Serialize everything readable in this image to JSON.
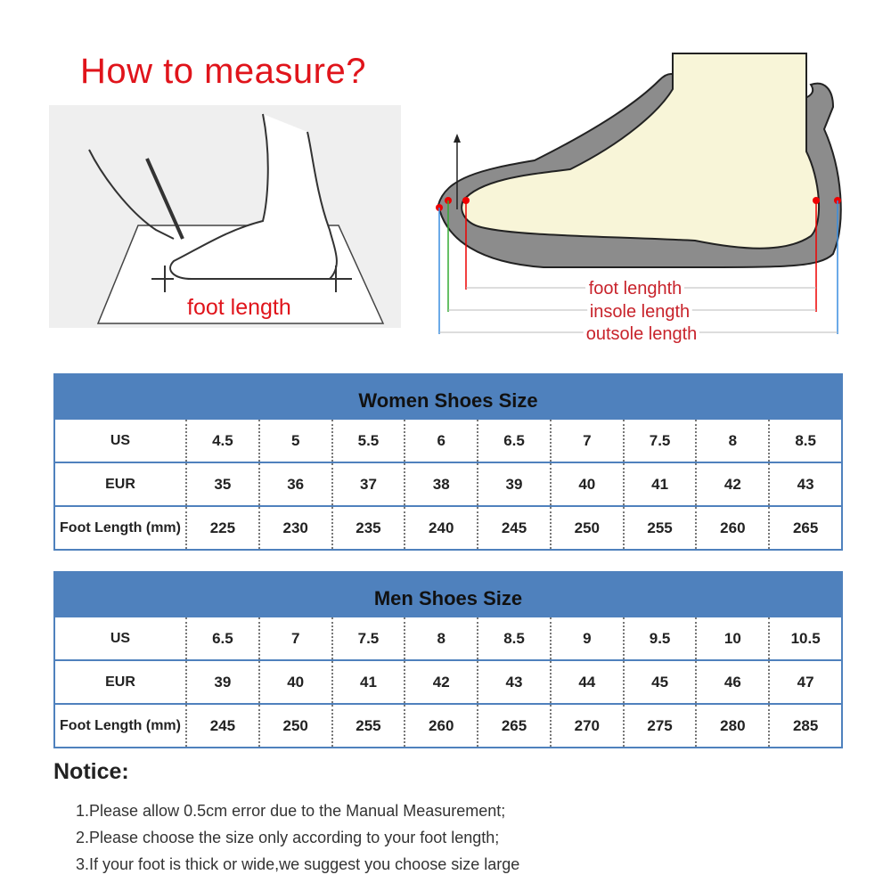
{
  "title": "How to measure?",
  "left_illustration": {
    "label": "foot length"
  },
  "right_illustration": {
    "labels": [
      "foot lenghth",
      "insole length",
      "outsole length"
    ]
  },
  "women": {
    "title": "Women Shoes Size",
    "rows": [
      {
        "label": "US",
        "values": [
          "4.5",
          "5",
          "5.5",
          "6",
          "6.5",
          "7",
          "7.5",
          "8",
          "8.5"
        ]
      },
      {
        "label": "EUR",
        "values": [
          "35",
          "36",
          "37",
          "38",
          "39",
          "40",
          "41",
          "42",
          "43"
        ]
      },
      {
        "label": "Foot Length (mm)",
        "values": [
          "225",
          "230",
          "235",
          "240",
          "245",
          "250",
          "255",
          "260",
          "265"
        ]
      }
    ]
  },
  "men": {
    "title": "Men Shoes Size",
    "rows": [
      {
        "label": "US",
        "values": [
          "6.5",
          "7",
          "7.5",
          "8",
          "8.5",
          "9",
          "9.5",
          "10",
          "10.5"
        ]
      },
      {
        "label": "EUR",
        "values": [
          "39",
          "40",
          "41",
          "42",
          "43",
          "44",
          "45",
          "46",
          "47"
        ]
      },
      {
        "label": "Foot Length (mm)",
        "values": [
          "245",
          "250",
          "255",
          "260",
          "265",
          "270",
          "275",
          "280",
          "285"
        ]
      }
    ]
  },
  "notice": {
    "heading": "Notice:",
    "items": [
      "1.Please allow 0.5cm error due to the Manual Measurement;",
      "2.Please choose the size only according to your foot length;",
      "3.If your foot is thick or wide,we suggest  you  choose size large"
    ]
  },
  "colors": {
    "title_red": "#e0141b",
    "table_blue": "#4f81bd"
  }
}
